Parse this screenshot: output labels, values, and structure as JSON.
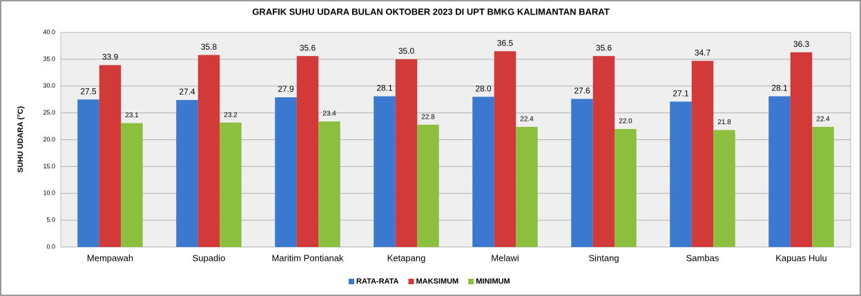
{
  "chart_data": {
    "type": "bar",
    "title": "GRAFIK SUHU UDARA BULAN OKTOBER 2023 DI UPT BMKG KALIMANTAN BARAT",
    "y_label": "SUHU UDARA (°C)",
    "categories": [
      "Mempawah",
      "Supadio",
      "Maritim Pontianak",
      "Ketapang",
      "Melawi",
      "Sintang",
      "Sambas",
      "Kapuas Hulu"
    ],
    "series": [
      {
        "name": "RATA-RATA",
        "color": "#3b78d0",
        "values": [
          27.5,
          27.4,
          27.9,
          28.1,
          28.0,
          27.6,
          27.1,
          28.1
        ],
        "value_labels": [
          "27.5",
          "27.4",
          "27.9",
          "28.1",
          "28.0",
          "27.6",
          "27.1",
          "28.1"
        ]
      },
      {
        "name": "MAKSIMUM",
        "color": "#d23a3a",
        "values": [
          33.9,
          35.8,
          35.6,
          35.0,
          36.5,
          35.6,
          34.7,
          36.3
        ],
        "value_labels": [
          "33.9",
          "35.8",
          "35.6",
          "35.0",
          "36.5",
          "35.6",
          "34.7",
          "36.3"
        ]
      },
      {
        "name": "MINIMUM",
        "color": "#8dbf3e",
        "values": [
          23.1,
          23.2,
          23.4,
          22.8,
          22.4,
          22.0,
          21.8,
          22.4
        ],
        "value_labels": [
          "23.1",
          "23.2",
          "23.4",
          "22.8",
          "22.4",
          "22.0",
          "21.8",
          "22.4"
        ]
      }
    ],
    "ylim": [
      0,
      40
    ],
    "yticks": [
      {
        "value": 0,
        "label": "0.0"
      },
      {
        "value": 5,
        "label": "5.0"
      },
      {
        "value": 10,
        "label": "10.0"
      },
      {
        "value": 15,
        "label": "15.0"
      },
      {
        "value": 20,
        "label": "20.0"
      },
      {
        "value": 25,
        "label": "25.0"
      },
      {
        "value": 30,
        "label": "30.0"
      },
      {
        "value": 35,
        "label": "35.0"
      },
      {
        "value": 40,
        "label": "40.0"
      }
    ],
    "grid": true,
    "legend": "bottom"
  }
}
